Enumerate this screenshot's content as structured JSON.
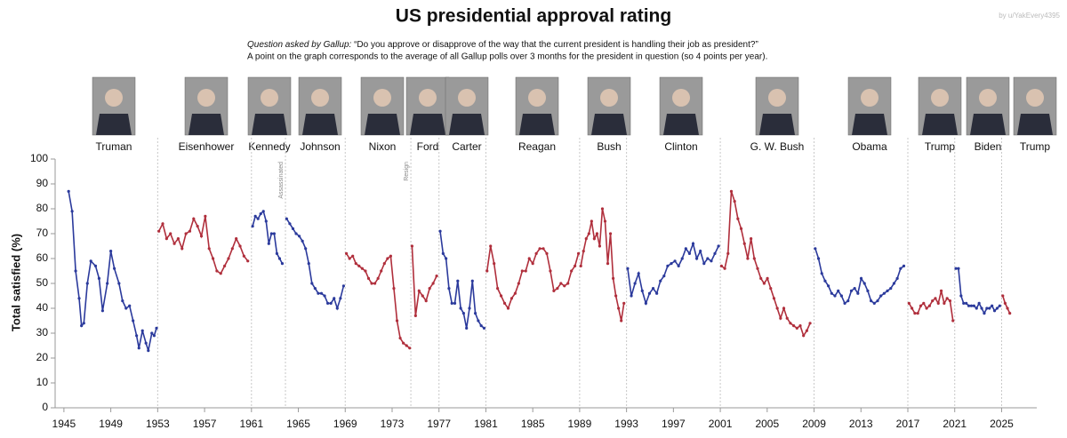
{
  "chart_data": {
    "type": "line",
    "title": "US presidential approval rating",
    "credit": "by u/YakEvery4395",
    "subtitle_lead": "Question asked by Gallup:",
    "subtitle_question": "“Do you approve or disapprove of the way that the current president is handling their job as president?”",
    "note": "A point on the graph corresponds to the average of all Gallup polls over 3 months for the president in question (so 4 points per year).",
    "ylabel": "Total satisfied (%)",
    "xlim": [
      1944.25,
      2028
    ],
    "ylim": [
      0,
      100
    ],
    "xticks": [
      1945,
      1949,
      1953,
      1957,
      1961,
      1965,
      1969,
      1973,
      1977,
      1981,
      1985,
      1989,
      1993,
      1997,
      2001,
      2005,
      2009,
      2013,
      2017,
      2021,
      2025
    ],
    "yticks": [
      0,
      10,
      20,
      30,
      40,
      50,
      60,
      70,
      80,
      90,
      100
    ],
    "term_dividers": [
      1953,
      1961,
      1963.9,
      1969,
      1974.6,
      1977,
      1981,
      1989,
      1993,
      2001,
      2009,
      2017,
      2021,
      2025
    ],
    "annotations": [
      {
        "text": "Assassinated",
        "x": 1963.9
      },
      {
        "text": "Resign",
        "x": 1974.6
      }
    ],
    "series": [
      {
        "name": "Truman",
        "color": "#2b3a9c",
        "x": [
          1945.4,
          1945.7,
          1946.0,
          1946.3,
          1946.5,
          1946.7,
          1947.0,
          1947.3,
          1947.7,
          1948.0,
          1948.3,
          1948.7,
          1949.0,
          1949.3,
          1949.7,
          1950.0,
          1950.3,
          1950.6,
          1950.9,
          1951.2,
          1951.4,
          1951.7,
          1952.0,
          1952.2,
          1952.5,
          1952.7,
          1952.9
        ],
        "values": [
          87,
          79,
          55,
          44,
          33,
          34,
          50,
          59,
          57,
          52,
          39,
          50,
          63,
          56,
          50,
          43,
          40,
          41,
          35,
          29,
          24,
          31,
          26,
          23,
          30,
          29,
          32
        ]
      },
      {
        "name": "Eisenhower",
        "color": "#b02f3c",
        "x": [
          1953.1,
          1953.43,
          1953.76,
          1954.09,
          1954.42,
          1954.75,
          1955.08,
          1955.41,
          1955.74,
          1956.07,
          1956.4,
          1956.73,
          1957.06,
          1957.39,
          1957.72,
          1958.05,
          1958.38,
          1958.71,
          1959.04,
          1959.37,
          1959.7,
          1960.03,
          1960.36,
          1960.69
        ],
        "values": [
          71,
          74,
          68,
          70,
          66,
          68,
          64,
          70,
          71,
          76,
          73,
          69,
          77,
          64,
          60,
          55,
          54,
          57,
          60,
          64,
          68,
          65,
          61,
          59
        ]
      },
      {
        "name": "Kennedy",
        "color": "#2b3a9c",
        "x": [
          1961.1,
          1961.33,
          1961.56,
          1961.79,
          1962.02,
          1962.25,
          1962.48,
          1962.71,
          1962.94,
          1963.17,
          1963.4,
          1963.63
        ],
        "values": [
          73,
          77,
          76,
          78,
          79,
          75,
          66,
          70,
          70,
          62,
          60,
          58
        ]
      },
      {
        "name": "Johnson",
        "color": "#2b3a9c",
        "x": [
          1964.0,
          1964.27,
          1964.54,
          1964.81,
          1965.08,
          1965.35,
          1965.62,
          1965.89,
          1966.16,
          1966.43,
          1966.7,
          1966.97,
          1967.24,
          1967.51,
          1967.78,
          1968.05,
          1968.32,
          1968.59,
          1968.86
        ],
        "values": [
          76,
          74,
          72,
          70,
          69,
          67,
          64,
          58,
          50,
          48,
          46,
          46,
          45,
          42,
          42,
          44,
          40,
          44,
          49
        ]
      },
      {
        "name": "Nixon",
        "color": "#b02f3c",
        "x": [
          1969.1,
          1969.37,
          1969.64,
          1969.91,
          1970.18,
          1970.45,
          1970.72,
          1970.99,
          1971.26,
          1971.53,
          1971.8,
          1972.07,
          1972.34,
          1972.61,
          1972.88,
          1973.15,
          1973.42,
          1973.69,
          1973.96,
          1974.23,
          1974.5
        ],
        "values": [
          62,
          60,
          61,
          58,
          57,
          56,
          55,
          52,
          50,
          50,
          52,
          55,
          58,
          60,
          61,
          48,
          35,
          28,
          26,
          25,
          24
        ]
      },
      {
        "name": "Ford",
        "color": "#b02f3c",
        "x": [
          1974.7,
          1975.0,
          1975.3,
          1975.6,
          1975.9,
          1976.2,
          1976.5,
          1976.8
        ],
        "values": [
          65,
          37,
          47,
          45,
          43,
          48,
          50,
          53
        ]
      },
      {
        "name": "Carter",
        "color": "#2b3a9c",
        "x": [
          1977.1,
          1977.35,
          1977.6,
          1977.85,
          1978.1,
          1978.35,
          1978.6,
          1978.85,
          1979.1,
          1979.35,
          1979.6,
          1979.85,
          1980.1,
          1980.35,
          1980.6,
          1980.85
        ],
        "values": [
          71,
          62,
          60,
          48,
          42,
          42,
          51,
          40,
          38,
          32,
          40,
          51,
          38,
          35,
          33,
          32
        ]
      },
      {
        "name": "Reagan",
        "color": "#b02f3c",
        "x": [
          1981.1,
          1981.4,
          1981.7,
          1982.0,
          1982.3,
          1982.6,
          1982.9,
          1983.2,
          1983.5,
          1983.8,
          1984.1,
          1984.4,
          1984.7,
          1985.0,
          1985.3,
          1985.6,
          1985.9,
          1986.2,
          1986.5,
          1986.8,
          1987.1,
          1987.4,
          1987.7,
          1988.0,
          1988.3,
          1988.6,
          1988.9
        ],
        "values": [
          55,
          65,
          58,
          48,
          45,
          42,
          40,
          44,
          46,
          50,
          55,
          55,
          60,
          58,
          62,
          64,
          64,
          62,
          55,
          47,
          48,
          50,
          49,
          50,
          55,
          57,
          62
        ]
      },
      {
        "name": "Bush",
        "color": "#b02f3c",
        "x": [
          1989.1,
          1989.33,
          1989.56,
          1989.79,
          1990.02,
          1990.25,
          1990.48,
          1990.71,
          1990.94,
          1991.17,
          1991.4,
          1991.63,
          1991.86,
          1992.09,
          1992.32,
          1992.55,
          1992.78
        ],
        "values": [
          57,
          63,
          68,
          70,
          75,
          68,
          70,
          65,
          80,
          75,
          58,
          70,
          52,
          45,
          40,
          35,
          42
        ]
      },
      {
        "name": "Clinton",
        "color": "#2b3a9c",
        "x": [
          1993.1,
          1993.41,
          1993.72,
          1994.03,
          1994.34,
          1994.65,
          1994.96,
          1995.27,
          1995.58,
          1995.89,
          1996.2,
          1996.51,
          1996.82,
          1997.13,
          1997.44,
          1997.75,
          1998.06,
          1998.37,
          1998.68,
          1998.99,
          1999.3,
          1999.61,
          1999.92,
          2000.23,
          2000.54,
          2000.85
        ],
        "values": [
          56,
          45,
          50,
          54,
          47,
          42,
          46,
          48,
          46,
          51,
          53,
          57,
          58,
          59,
          57,
          60,
          64,
          62,
          66,
          60,
          63,
          58,
          60,
          59,
          62,
          65
        ]
      },
      {
        "name": "G. W. Bush",
        "color": "#b02f3c",
        "x": [
          2001.1,
          2001.38,
          2001.66,
          2001.94,
          2002.22,
          2002.5,
          2002.78,
          2003.06,
          2003.34,
          2003.62,
          2003.9,
          2004.18,
          2004.46,
          2004.74,
          2005.02,
          2005.3,
          2005.58,
          2005.86,
          2006.14,
          2006.42,
          2006.7,
          2006.98,
          2007.26,
          2007.54,
          2007.82,
          2008.1,
          2008.38,
          2008.66
        ],
        "values": [
          57,
          56,
          62,
          87,
          83,
          76,
          72,
          66,
          60,
          68,
          60,
          56,
          52,
          50,
          52,
          48,
          44,
          40,
          36,
          40,
          36,
          34,
          33,
          32,
          33,
          29,
          31,
          34
        ]
      },
      {
        "name": "Obama",
        "color": "#2b3a9c",
        "x": [
          2009.1,
          2009.38,
          2009.66,
          2009.94,
          2010.22,
          2010.5,
          2010.78,
          2011.06,
          2011.34,
          2011.62,
          2011.9,
          2012.18,
          2012.46,
          2012.74,
          2013.02,
          2013.3,
          2013.58,
          2013.86,
          2014.14,
          2014.42,
          2014.7,
          2014.98,
          2015.26,
          2015.54,
          2015.82,
          2016.1,
          2016.38,
          2016.66
        ],
        "values": [
          64,
          60,
          54,
          51,
          49,
          46,
          45,
          47,
          45,
          42,
          43,
          47,
          48,
          46,
          52,
          50,
          47,
          43,
          42,
          43,
          45,
          46,
          47,
          48,
          50,
          52,
          56,
          57
        ]
      },
      {
        "name": "Trump",
        "color": "#b02f3c",
        "x": [
          2017.1,
          2017.35,
          2017.6,
          2017.85,
          2018.1,
          2018.35,
          2018.6,
          2018.85,
          2019.1,
          2019.35,
          2019.6,
          2019.85,
          2020.1,
          2020.35,
          2020.6,
          2020.85
        ],
        "values": [
          42,
          40,
          38,
          38,
          41,
          42,
          40,
          41,
          43,
          44,
          42,
          47,
          42,
          44,
          43,
          35
        ]
      },
      {
        "name": "Biden",
        "color": "#2b3a9c",
        "x": [
          2021.1,
          2021.32,
          2021.54,
          2021.76,
          2021.98,
          2022.2,
          2022.42,
          2022.64,
          2022.86,
          2023.08,
          2023.3,
          2023.52,
          2023.74,
          2023.96,
          2024.18,
          2024.4,
          2024.62,
          2024.84
        ],
        "values": [
          56,
          56,
          45,
          42,
          42,
          41,
          41,
          41,
          40,
          42,
          40,
          38,
          40,
          40,
          41,
          39,
          40,
          41
        ]
      },
      {
        "name": "Trump",
        "color": "#b02f3c",
        "x": [
          2025.1,
          2025.3,
          2025.5,
          2025.7
        ],
        "values": [
          45,
          42,
          40,
          38
        ]
      }
    ]
  }
}
